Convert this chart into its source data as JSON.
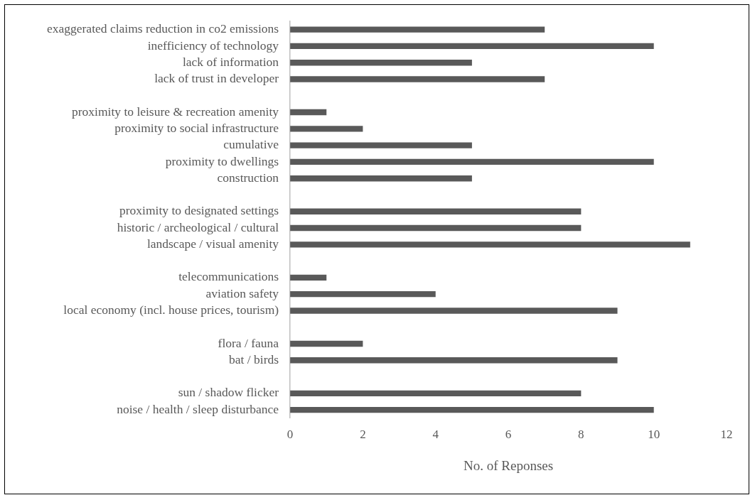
{
  "chart_data": {
    "type": "bar",
    "orientation": "horizontal",
    "categories": [
      "exaggerated claims reduction in co2 emissions",
      "inefficiency of technology",
      "lack of information",
      "lack of trust in developer",
      null,
      "proximity to leisure & recreation amenity",
      "proximity to social infrastructure",
      "cumulative",
      "proximity to dwellings",
      "construction",
      null,
      "proximity to designated settings",
      "historic / archeological / cultural",
      "landscape / visual amenity",
      null,
      "telecommunications",
      "aviation safety",
      "local economy (incl. house prices, tourism)",
      null,
      "flora / fauna",
      "bat / birds",
      null,
      "sun / shadow flicker",
      "noise / health / sleep disturbance"
    ],
    "values": [
      7,
      10,
      5,
      7,
      null,
      1,
      2,
      5,
      10,
      5,
      null,
      8,
      8,
      11,
      null,
      1,
      4,
      9,
      null,
      2,
      9,
      null,
      8,
      10
    ],
    "color": "#595959",
    "xlim": [
      0,
      12
    ],
    "xticks": [
      0,
      2,
      4,
      6,
      8,
      10,
      12
    ],
    "xlabel": "No. of Reponses",
    "legend": false,
    "grid": false
  }
}
